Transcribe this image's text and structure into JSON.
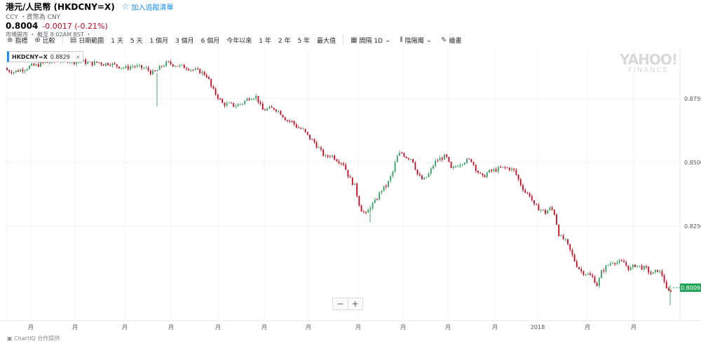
{
  "header": {
    "title": "港元/人民幣 (HKDCNY=X)",
    "watchlist_label": "加入追蹤清單",
    "subtitle": "CCY ・貨幣為 CNY",
    "price": "0.8004",
    "change": "-0.0017 (-0.21%)",
    "market_status": "市場開市 ・ 截至 8:02AM BST ・"
  },
  "toolbar": {
    "indicators": "指標",
    "compare": "比較",
    "date_range": "日期範圍",
    "ranges": [
      "1 天",
      "5 天",
      "1 個月",
      "3 個月",
      "6 個月",
      "今年以來",
      "1 年",
      "2 年",
      "5 年",
      "最大值"
    ],
    "interval": "間隔 1D",
    "chart_type": "陰陽燭",
    "draw": "繪畫"
  },
  "legend": {
    "symbol": "HKDCNY=X",
    "value": "0.8829"
  },
  "watermark": {
    "line1": "YAHOO!",
    "line2": "FINANCE"
  },
  "footer": "ChartIQ 合作提供",
  "colors": {
    "up": "#2e9e5b",
    "down": "#d0021b",
    "accent": "#188fff",
    "last_price_bg": "#21a357"
  },
  "chart_data": {
    "type": "candlestick",
    "title": "",
    "y_ticks": [
      "0.8750",
      "0.8500",
      "0.8250"
    ],
    "ylim": [
      0.788,
      0.895
    ],
    "last_price": "0.8009",
    "x_labels": [
      "月",
      "月",
      "月",
      "月",
      "月",
      "月",
      "月",
      "月",
      "月",
      "月",
      "月",
      "2018",
      "月",
      "月"
    ],
    "grid": true,
    "series": [
      {
        "name": "HKDCNY=X",
        "close_points": [
          [
            0,
            0.887
          ],
          [
            12,
            0.886
          ],
          [
            20,
            0.8855
          ],
          [
            28,
            0.8862
          ],
          [
            36,
            0.8868
          ],
          [
            44,
            0.8878
          ],
          [
            52,
            0.888
          ],
          [
            60,
            0.8888
          ],
          [
            70,
            0.8892
          ],
          [
            80,
            0.8898
          ],
          [
            90,
            0.8902
          ],
          [
            98,
            0.89
          ],
          [
            108,
            0.8893
          ],
          [
            118,
            0.8897
          ],
          [
            124,
            0.889
          ],
          [
            132,
            0.8888
          ],
          [
            140,
            0.8893
          ],
          [
            148,
            0.8885
          ],
          [
            156,
            0.889
          ],
          [
            164,
            0.888
          ],
          [
            172,
            0.8875
          ],
          [
            180,
            0.887
          ],
          [
            190,
            0.8878
          ],
          [
            200,
            0.8872
          ],
          [
            210,
            0.8866
          ],
          [
            216,
            0.885
          ],
          [
            222,
            0.8855
          ],
          [
            230,
            0.8876
          ],
          [
            238,
            0.889
          ],
          [
            246,
            0.8885
          ],
          [
            256,
            0.8877
          ],
          [
            266,
            0.8873
          ],
          [
            276,
            0.8862
          ],
          [
            286,
            0.8856
          ],
          [
            296,
            0.8838
          ],
          [
            302,
            0.879
          ],
          [
            310,
            0.876
          ],
          [
            318,
            0.8728
          ],
          [
            326,
            0.8728
          ],
          [
            336,
            0.8722
          ],
          [
            346,
            0.8733
          ],
          [
            356,
            0.8755
          ],
          [
            366,
            0.8758
          ],
          [
            374,
            0.8705
          ],
          [
            384,
            0.871
          ],
          [
            392,
            0.8712
          ],
          [
            400,
            0.8695
          ],
          [
            408,
            0.8668
          ],
          [
            416,
            0.866
          ],
          [
            424,
            0.8638
          ],
          [
            432,
            0.8628
          ],
          [
            440,
            0.86
          ],
          [
            448,
            0.858
          ],
          [
            456,
            0.855
          ],
          [
            464,
            0.852
          ],
          [
            472,
            0.853
          ],
          [
            480,
            0.8512
          ],
          [
            490,
            0.8495
          ],
          [
            498,
            0.844
          ],
          [
            506,
            0.8408
          ],
          [
            514,
            0.832
          ],
          [
            522,
            0.8295
          ],
          [
            528,
            0.8325
          ],
          [
            536,
            0.835
          ],
          [
            544,
            0.8392
          ],
          [
            552,
            0.841
          ],
          [
            560,
            0.846
          ],
          [
            566,
            0.852
          ],
          [
            572,
            0.854
          ],
          [
            580,
            0.852
          ],
          [
            588,
            0.8515
          ],
          [
            596,
            0.845
          ],
          [
            604,
            0.8428
          ],
          [
            612,
            0.8455
          ],
          [
            620,
            0.85
          ],
          [
            628,
            0.8515
          ],
          [
            636,
            0.8525
          ],
          [
            644,
            0.847
          ],
          [
            652,
            0.849
          ],
          [
            662,
            0.8505
          ],
          [
            672,
            0.851
          ],
          [
            680,
            0.847
          ],
          [
            688,
            0.844
          ],
          [
            696,
            0.8462
          ],
          [
            706,
            0.847
          ],
          [
            716,
            0.8478
          ],
          [
            726,
            0.8478
          ],
          [
            734,
            0.8466
          ],
          [
            742,
            0.8418
          ],
          [
            750,
            0.838
          ],
          [
            756,
            0.8372
          ],
          [
            762,
            0.833
          ],
          [
            770,
            0.8318
          ],
          [
            778,
            0.8303
          ],
          [
            784,
            0.832
          ],
          [
            790,
            0.831
          ],
          [
            798,
            0.821
          ],
          [
            806,
            0.8195
          ],
          [
            814,
            0.815
          ],
          [
            822,
            0.81
          ],
          [
            830,
            0.807
          ],
          [
            838,
            0.8063
          ],
          [
            846,
            0.8048
          ],
          [
            852,
            0.8018
          ],
          [
            858,
            0.807
          ],
          [
            866,
            0.8095
          ],
          [
            874,
            0.8112
          ],
          [
            882,
            0.8108
          ],
          [
            890,
            0.8108
          ],
          [
            898,
            0.808
          ],
          [
            906,
            0.8098
          ],
          [
            914,
            0.809
          ],
          [
            922,
            0.8082
          ],
          [
            930,
            0.806
          ],
          [
            938,
            0.8078
          ],
          [
            946,
            0.8055
          ],
          [
            952,
            0.7985
          ],
          [
            956,
            0.8
          ],
          [
            960,
            0.8009
          ]
        ]
      }
    ]
  }
}
